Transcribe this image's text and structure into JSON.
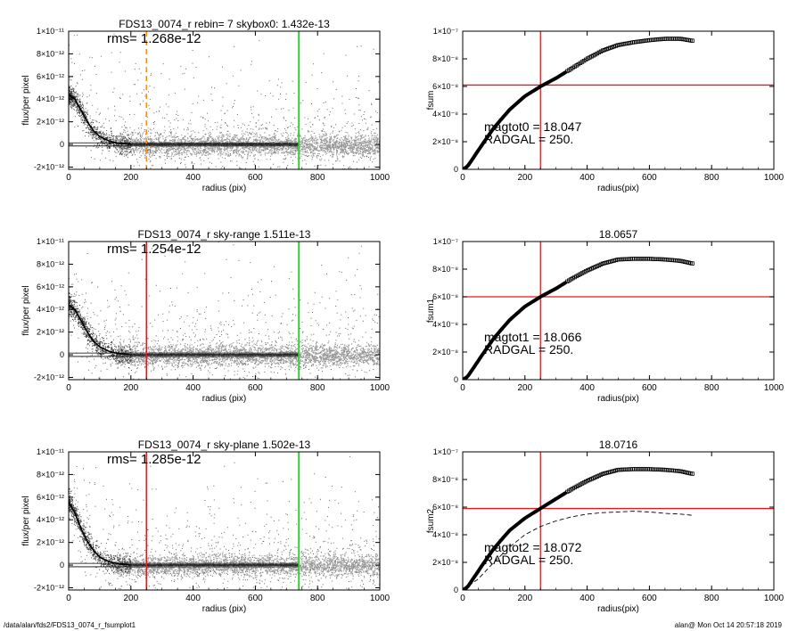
{
  "footer": {
    "path": "/data/alan/fds2/FDS13_0074_r_fsumplot1",
    "stamp": "alan@  Mon Oct 14 20:57:18 2019"
  },
  "colors": {
    "scatter_gray": "#999999",
    "scatter_dark": "#333333",
    "profile_black": "#000000",
    "red": "#e31a1c",
    "green": "#33cc33",
    "orange": "#ff8c1a",
    "axis": "#000000"
  },
  "chart_data": [
    {
      "type": "scatter",
      "title": "FDS13_0074_r rebin= 7    skybox0:  1.432e-13",
      "xlabel": "radius (pix)",
      "ylabel": "flux/per pixel",
      "xlim": [
        0,
        1000
      ],
      "ylim": [
        -2.2e-12,
        1e-11
      ],
      "xticks": [
        "0",
        "200",
        "400",
        "600",
        "800",
        "1000"
      ],
      "yticks": [
        "-2×10⁻¹²",
        "0",
        "2×10⁻¹²",
        "4×10⁻¹²",
        "6×10⁻¹²",
        "8×10⁻¹²",
        "1×10⁻¹¹"
      ],
      "annotation": "rms= 1.268e-12",
      "radius_line": {
        "x": 250,
        "style": "dashed",
        "color": "orange"
      },
      "outer_line": {
        "x": 740,
        "color": "green"
      },
      "profile": {
        "x": [
          0,
          20,
          40,
          60,
          80,
          100,
          130,
          160,
          200,
          250,
          300,
          740
        ],
        "y": [
          4.4e-12,
          4e-12,
          3e-12,
          2e-12,
          1.2e-12,
          7e-13,
          3e-13,
          1e-13,
          0,
          0,
          0,
          0
        ]
      },
      "zero_band": [
        1.4e-13,
        -1.4e-13
      ]
    },
    {
      "type": "line",
      "title": "",
      "xlabel": "radius(pix)",
      "ylabel": "fsum",
      "xlim": [
        0,
        1000
      ],
      "ylim": [
        0,
        1e-07
      ],
      "xticks": [
        "0",
        "200",
        "400",
        "600",
        "800",
        "1000"
      ],
      "yticks": [
        "0",
        "2×10⁻⁸",
        "4×10⁻⁸",
        "6×10⁻⁸",
        "8×10⁻⁸",
        "1×10⁻⁷"
      ],
      "annotation_lines": [
        "magtot0 =  18.047",
        "RADGAL =    250."
      ],
      "crosshair": {
        "x": 250,
        "y": 6.1e-08,
        "color": "red"
      },
      "x": [
        0,
        15,
        30,
        60,
        100,
        150,
        200,
        250,
        300,
        350,
        400,
        450,
        500,
        550,
        600,
        650,
        700,
        740
      ],
      "y": [
        0,
        2e-09,
        7e-09,
        1.7e-08,
        3e-08,
        4.3e-08,
        5.3e-08,
        6e-08,
        6.6e-08,
        7.3e-08,
        8e-08,
        8.6e-08,
        9e-08,
        9.2e-08,
        9.35e-08,
        9.45e-08,
        9.45e-08,
        9.3e-08
      ],
      "dashed": null
    },
    {
      "type": "scatter",
      "title": "FDS13_0074_r sky-range  1.511e-13",
      "xlabel": "radius (pix)",
      "ylabel": "flux/per pixel",
      "xlim": [
        0,
        1000
      ],
      "ylim": [
        -2.2e-12,
        1e-11
      ],
      "xticks": [
        "0",
        "200",
        "400",
        "600",
        "800",
        "1000"
      ],
      "yticks": [
        "-2×10⁻¹²",
        "0",
        "2×10⁻¹²",
        "4×10⁻¹²",
        "6×10⁻¹²",
        "8×10⁻¹²",
        "1×10⁻¹¹"
      ],
      "annotation": "rms= 1.254e-12",
      "radius_line": {
        "x": 250,
        "style": "solid",
        "color": "red"
      },
      "outer_line": {
        "x": 740,
        "color": "green"
      },
      "profile": {
        "x": [
          0,
          20,
          40,
          60,
          80,
          100,
          130,
          160,
          200,
          250,
          300,
          740
        ],
        "y": [
          4.4e-12,
          4e-12,
          3e-12,
          2e-12,
          1.2e-12,
          7e-13,
          3e-13,
          1e-13,
          0,
          0,
          0,
          0
        ]
      },
      "zero_band": [
        1.5e-13,
        -1.5e-13
      ]
    },
    {
      "type": "line",
      "title": "18.0657",
      "xlabel": "radius(pix)",
      "ylabel": "fsum1",
      "xlim": [
        0,
        1000
      ],
      "ylim": [
        0,
        1e-07
      ],
      "xticks": [
        "0",
        "200",
        "400",
        "600",
        "800",
        "1000"
      ],
      "yticks": [
        "0",
        "2×10⁻⁸",
        "4×10⁻⁸",
        "6×10⁻⁸",
        "8×10⁻⁸",
        "1×10⁻⁷"
      ],
      "annotation_lines": [
        "magtot1 =  18.066",
        "RADGAL =    250."
      ],
      "crosshair": {
        "x": 250,
        "y": 6e-08,
        "color": "red"
      },
      "x": [
        0,
        15,
        30,
        60,
        100,
        150,
        200,
        250,
        300,
        350,
        400,
        450,
        500,
        550,
        600,
        650,
        700,
        740
      ],
      "y": [
        0,
        2e-09,
        7e-09,
        1.7e-08,
        3e-08,
        4.3e-08,
        5.3e-08,
        6e-08,
        6.6e-08,
        7.3e-08,
        7.9e-08,
        8.4e-08,
        8.7e-08,
        8.75e-08,
        8.75e-08,
        8.7e-08,
        8.6e-08,
        8.4e-08
      ],
      "dashed": null
    },
    {
      "type": "scatter",
      "title": "FDS13_0074_r sky-plane  1.502e-13",
      "xlabel": "radius (pix)",
      "ylabel": "flux/per pixel",
      "xlim": [
        0,
        1000
      ],
      "ylim": [
        -2.2e-12,
        1e-11
      ],
      "xticks": [
        "0",
        "200",
        "400",
        "600",
        "800",
        "1000"
      ],
      "yticks": [
        "-2×10⁻¹²",
        "0",
        "2×10⁻¹²",
        "4×10⁻¹²",
        "6×10⁻¹²",
        "8×10⁻¹²",
        "1×10⁻¹¹"
      ],
      "annotation": "rms= 1.285e-12",
      "radius_line": {
        "x": 250,
        "style": "solid",
        "color": "red"
      },
      "outer_line": {
        "x": 740,
        "color": "green"
      },
      "profile": {
        "x": [
          0,
          20,
          40,
          60,
          80,
          100,
          130,
          160,
          200,
          250,
          300,
          740
        ],
        "y": [
          5.6e-12,
          4.6e-12,
          3.2e-12,
          2.1e-12,
          1.3e-12,
          7e-13,
          3e-13,
          1e-13,
          0,
          0,
          0,
          0
        ]
      },
      "zero_band": [
        1.5e-13,
        -1.5e-13
      ]
    },
    {
      "type": "line",
      "title": "18.0716",
      "xlabel": "radius(pix)",
      "ylabel": "fsum2",
      "xlim": [
        0,
        1000
      ],
      "ylim": [
        0,
        1e-07
      ],
      "xticks": [
        "0",
        "200",
        "400",
        "600",
        "800",
        "1000"
      ],
      "yticks": [
        "0",
        "2×10⁻⁸",
        "4×10⁻⁸",
        "6×10⁻⁸",
        "8×10⁻⁸",
        "1×10⁻⁷"
      ],
      "annotation_lines": [
        "magtot2 =  18.072",
        "RADGAL =    250."
      ],
      "crosshair": {
        "x": 250,
        "y": 5.9e-08,
        "color": "red"
      },
      "x": [
        0,
        15,
        30,
        60,
        100,
        150,
        200,
        250,
        300,
        350,
        400,
        450,
        500,
        550,
        600,
        650,
        700,
        740
      ],
      "y": [
        0,
        2e-09,
        7e-09,
        1.7e-08,
        3e-08,
        4.3e-08,
        5.2e-08,
        5.9e-08,
        6.6e-08,
        7.3e-08,
        7.9e-08,
        8.4e-08,
        8.7e-08,
        8.75e-08,
        8.75e-08,
        8.7e-08,
        8.6e-08,
        8.4e-08
      ],
      "dashed": {
        "x": [
          0,
          50,
          100,
          150,
          200,
          250,
          300,
          350,
          400,
          450,
          500,
          550,
          600,
          650,
          700,
          740
        ],
        "y": [
          0,
          8e-09,
          2e-08,
          3.1e-08,
          4e-08,
          4.6e-08,
          5e-08,
          5.3e-08,
          5.5e-08,
          5.6e-08,
          5.65e-08,
          5.7e-08,
          5.65e-08,
          5.55e-08,
          5.5e-08,
          5.4e-08
        ]
      }
    }
  ]
}
